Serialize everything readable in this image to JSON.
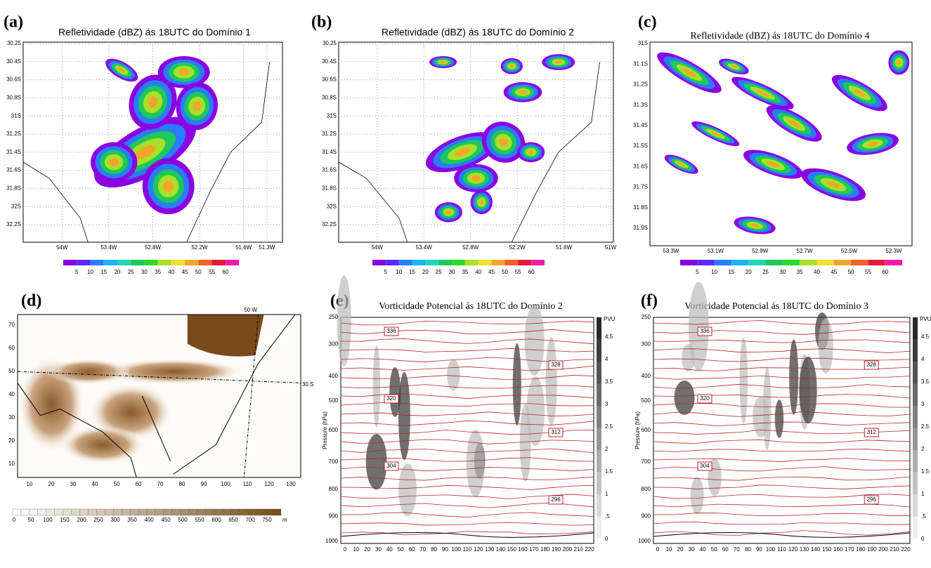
{
  "panels": [
    {
      "letter": "(a)",
      "title": "Refletividade (dBZ) ás 18UTC do Domínio 1",
      "yticks": [
        "30.25",
        "30.4S",
        "30.6S",
        "30.8S",
        "31S",
        "31.2S",
        "31.4S",
        "31.6S",
        "31.8S",
        "32S",
        "32.2S"
      ],
      "xticks": [
        "54W",
        "53.4W",
        "52.8W",
        "52.2W",
        "51.6W",
        "51.3W"
      ],
      "colorbar": [
        5,
        10,
        15,
        20,
        25,
        30,
        35,
        40,
        45,
        50,
        55,
        60
      ]
    },
    {
      "letter": "(b)",
      "title": "Refletividade (dBZ) ás 18UTC do Domínio 2",
      "yticks": [
        "30.25",
        "30.4S",
        "30.6S",
        "30.8S",
        "31S",
        "31.2S",
        "31.4S",
        "31.6S",
        "31.8S",
        "32S",
        "32.2S"
      ],
      "xticks": [
        "54W",
        "53.4W",
        "52.8W",
        "52.2W",
        "51.6W",
        "51W"
      ],
      "colorbar": [
        5,
        10,
        15,
        20,
        25,
        30,
        35,
        40,
        45,
        50,
        55,
        60
      ]
    },
    {
      "letter": "(c)",
      "title": "Refletividade (dBZ) ás 18UTC do Domínio 4",
      "yticks": [
        "31S",
        "31.1S",
        "31.2S",
        "31.3S",
        "31.4S",
        "31.5S",
        "31.6S",
        "31.7S",
        "31.8S",
        "31.9S"
      ],
      "xticks": [
        "53.3W",
        "53.1W",
        "52.9W",
        "52.7W",
        "52.5W",
        "52.3W"
      ],
      "colorbar": [
        5,
        10,
        15,
        20,
        25,
        30,
        35,
        40,
        45,
        50,
        55,
        60
      ]
    },
    {
      "letter": "(d)",
      "yticks": [
        70,
        60,
        50,
        40,
        30,
        20,
        10
      ],
      "xticks": [
        10,
        20,
        30,
        40,
        50,
        60,
        70,
        80,
        90,
        100,
        110,
        120,
        130
      ],
      "colorbar": [
        0,
        50,
        100,
        150,
        200,
        250,
        300,
        350,
        400,
        450,
        500,
        550,
        600,
        650,
        700,
        750
      ],
      "colorbar_unit": "m",
      "annotations": [
        "50 W",
        "30 S"
      ]
    },
    {
      "letter": "(e)",
      "title": "Vorticidade Potencial ás 18UTC do Domínio 2",
      "ylabel": "Pressure (hPa)",
      "yticks": [
        250,
        300,
        400,
        500,
        600,
        700,
        800,
        900,
        1000
      ],
      "xticks": [
        0,
        10,
        20,
        30,
        40,
        50,
        60,
        70,
        80,
        90,
        100,
        110,
        120,
        130,
        140,
        150,
        160,
        170,
        180,
        190,
        200,
        210,
        220
      ],
      "contour_labels": [
        336,
        328,
        320,
        312,
        304,
        296
      ],
      "colorbar_title": "PVU",
      "colorbar": [
        4.5,
        4,
        3.5,
        3,
        2.5,
        2,
        1.5,
        1,
        ".5",
        0
      ]
    },
    {
      "letter": "(f)",
      "title": "Vorticidade Potencial ás 18UTC do Domínio 3",
      "ylabel": "Pressure (hPa)",
      "yticks": [
        250,
        300,
        400,
        500,
        600,
        700,
        800,
        900,
        1000
      ],
      "xticks": [
        0,
        10,
        20,
        30,
        40,
        50,
        60,
        70,
        80,
        90,
        100,
        110,
        120,
        130,
        140,
        150,
        160,
        170,
        180,
        190,
        200,
        210,
        220
      ],
      "contour_labels": [
        336,
        328,
        320,
        312,
        304,
        296
      ],
      "colorbar_title": "PVU",
      "colorbar": [
        4.5,
        4,
        3.5,
        3,
        2.5,
        2,
        1.5,
        1,
        ".5",
        0
      ]
    }
  ]
}
